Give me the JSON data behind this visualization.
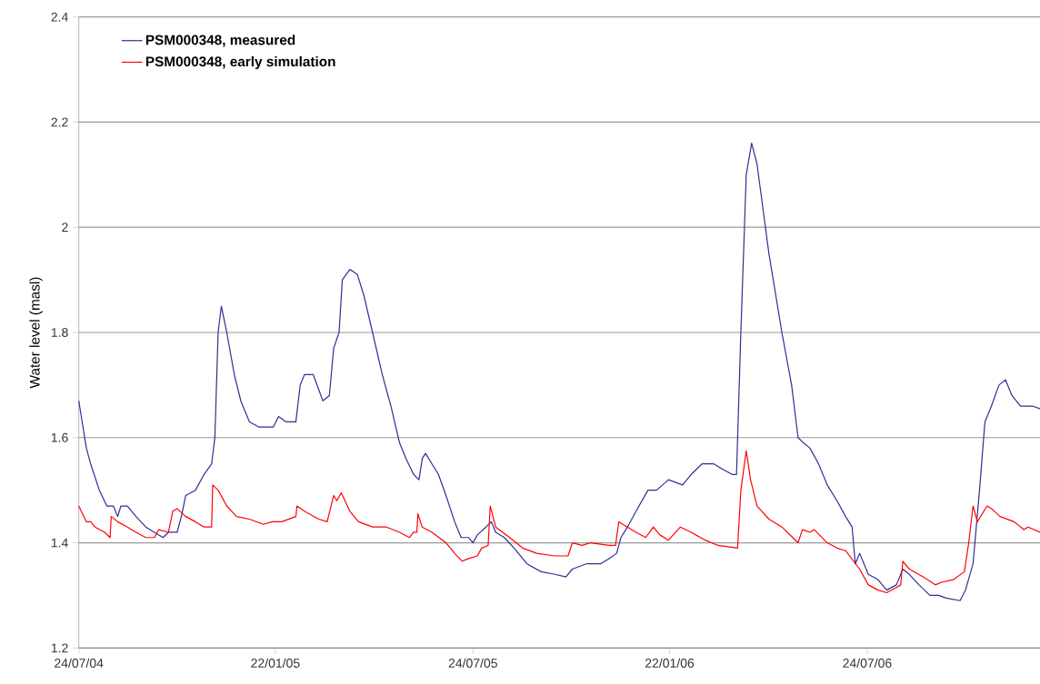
{
  "chart_data": {
    "type": "line",
    "ylabel": "Water level (masl)",
    "xlim": [
      "2004-07-24",
      "2006-12-31"
    ],
    "ylim": [
      1.2,
      2.4
    ],
    "yticks": [
      1.2,
      1.4,
      1.6,
      1.8,
      2,
      2.2,
      2.4
    ],
    "xticks": [
      {
        "value": "2004-07-24",
        "label": "24/07/04"
      },
      {
        "value": "2005-01-22",
        "label": "22/01/05"
      },
      {
        "value": "2005-07-24",
        "label": "24/07/05"
      },
      {
        "value": "2006-01-22",
        "label": "22/01/06"
      },
      {
        "value": "2006-07-24",
        "label": "24/07/06"
      }
    ],
    "grid": "y",
    "legend": "top left",
    "series": [
      {
        "name": "PSM000348, measured",
        "color": "#2e2e96",
        "x": [
          "2004-07-24",
          "2004-07-31",
          "2004-08-04",
          "2004-08-12",
          "2004-08-19",
          "2004-08-25",
          "2004-08-29",
          "2004-09-01",
          "2004-09-07",
          "2004-09-15",
          "2004-09-24",
          "2004-10-02",
          "2004-10-10",
          "2004-10-15",
          "2004-10-23",
          "2004-10-27",
          "2004-10-31",
          "2004-11-09",
          "2004-11-17",
          "2004-11-24",
          "2004-11-27",
          "2004-11-30",
          "2004-12-03",
          "2004-12-08",
          "2004-12-15",
          "2004-12-21",
          "2004-12-29",
          "2005-01-07",
          "2005-01-13",
          "2005-01-20",
          "2005-01-25",
          "2005-02-01",
          "2005-02-10",
          "2005-02-14",
          "2005-02-18",
          "2005-02-26",
          "2005-03-07",
          "2005-03-13",
          "2005-03-17",
          "2005-03-22",
          "2005-03-25",
          "2005-04-01",
          "2005-04-08",
          "2005-04-14",
          "2005-04-22",
          "2005-05-01",
          "2005-05-09",
          "2005-05-17",
          "2005-05-23",
          "2005-05-30",
          "2005-06-04",
          "2005-06-07",
          "2005-06-10",
          "2005-06-16",
          "2005-06-22",
          "2005-06-29",
          "2005-07-07",
          "2005-07-13",
          "2005-07-20",
          "2005-07-24",
          "2005-07-28",
          "2005-08-05",
          "2005-08-10",
          "2005-08-14",
          "2005-08-22",
          "2005-08-31",
          "2005-09-12",
          "2005-09-25",
          "2005-10-08",
          "2005-10-18",
          "2005-10-24",
          "2005-11-06",
          "2005-11-19",
          "2005-11-27",
          "2005-12-04",
          "2005-12-08",
          "2005-12-14",
          "2005-12-22",
          "2006-01-02",
          "2006-01-10",
          "2006-01-21",
          "2006-02-03",
          "2006-02-11",
          "2006-02-21",
          "2006-03-04",
          "2006-03-12",
          "2006-03-21",
          "2006-03-25",
          "2006-03-29",
          "2006-04-03",
          "2006-04-08",
          "2006-04-13",
          "2006-04-24",
          "2006-05-06",
          "2006-05-15",
          "2006-05-21",
          "2006-05-26",
          "2006-06-01",
          "2006-06-09",
          "2006-06-17",
          "2006-06-26",
          "2006-07-04",
          "2006-07-10",
          "2006-07-13",
          "2006-07-17",
          "2006-07-25",
          "2006-08-03",
          "2006-08-11",
          "2006-08-20",
          "2006-08-26",
          "2006-09-01",
          "2006-09-10",
          "2006-09-20",
          "2006-09-28",
          "2006-10-05",
          "2006-10-18",
          "2006-10-23",
          "2006-10-30",
          "2006-11-05",
          "2006-11-10",
          "2006-11-16",
          "2006-11-23",
          "2006-11-29",
          "2006-12-05",
          "2006-12-13",
          "2006-12-24",
          "2006-12-31"
        ],
        "values": [
          1.67,
          1.58,
          1.55,
          1.5,
          1.47,
          1.47,
          1.45,
          1.47,
          1.47,
          1.45,
          1.43,
          1.42,
          1.41,
          1.42,
          1.42,
          1.45,
          1.49,
          1.5,
          1.53,
          1.55,
          1.6,
          1.8,
          1.85,
          1.8,
          1.72,
          1.67,
          1.63,
          1.62,
          1.62,
          1.62,
          1.64,
          1.63,
          1.63,
          1.7,
          1.72,
          1.72,
          1.67,
          1.68,
          1.77,
          1.8,
          1.9,
          1.92,
          1.91,
          1.87,
          1.8,
          1.72,
          1.66,
          1.59,
          1.56,
          1.53,
          1.52,
          1.56,
          1.57,
          1.55,
          1.53,
          1.49,
          1.44,
          1.41,
          1.41,
          1.4,
          1.415,
          1.43,
          1.44,
          1.42,
          1.41,
          1.39,
          1.36,
          1.345,
          1.34,
          1.335,
          1.35,
          1.36,
          1.36,
          1.37,
          1.38,
          1.41,
          1.43,
          1.46,
          1.5,
          1.5,
          1.52,
          1.51,
          1.53,
          1.55,
          1.55,
          1.54,
          1.53,
          1.53,
          1.8,
          2.1,
          2.16,
          2.12,
          1.95,
          1.8,
          1.7,
          1.6,
          1.59,
          1.58,
          1.55,
          1.51,
          1.48,
          1.45,
          1.43,
          1.36,
          1.38,
          1.34,
          1.33,
          1.31,
          1.32,
          1.35,
          1.34,
          1.32,
          1.3,
          1.3,
          1.295,
          1.29,
          1.31,
          1.36,
          1.5,
          1.63,
          1.66,
          1.7,
          1.71,
          1.68,
          1.66,
          1.66,
          1.655
        ]
      },
      {
        "name": "PSM000348, early simulation",
        "color": "#ff0000",
        "x": [
          "2004-07-24",
          "2004-07-31",
          "2004-08-04",
          "2004-08-08",
          "2004-08-17",
          "2004-08-22",
          "2004-08-23",
          "2004-08-29",
          "2004-09-07",
          "2004-09-15",
          "2004-09-24",
          "2004-10-02",
          "2004-10-06",
          "2004-10-15",
          "2004-10-19",
          "2004-10-23",
          "2004-10-31",
          "2004-11-09",
          "2004-11-17",
          "2004-11-24",
          "2004-11-25",
          "2004-11-30",
          "2004-12-08",
          "2004-12-17",
          "2004-12-29",
          "2005-01-11",
          "2005-01-19",
          "2005-01-28",
          "2005-02-10",
          "2005-02-11",
          "2005-02-18",
          "2005-03-03",
          "2005-03-11",
          "2005-03-17",
          "2005-03-20",
          "2005-03-24",
          "2005-04-01",
          "2005-04-09",
          "2005-04-22",
          "2005-05-05",
          "2005-05-17",
          "2005-05-26",
          "2005-05-30",
          "2005-06-02",
          "2005-06-03",
          "2005-06-07",
          "2005-06-16",
          "2005-06-29",
          "2005-07-07",
          "2005-07-14",
          "2005-07-20",
          "2005-07-28",
          "2005-08-01",
          "2005-08-07",
          "2005-08-09",
          "2005-08-14",
          "2005-08-27",
          "2005-09-08",
          "2005-09-21",
          "2005-10-08",
          "2005-10-20",
          "2005-10-24",
          "2005-11-02",
          "2005-11-10",
          "2005-11-27",
          "2005-12-03",
          "2005-12-06",
          "2005-12-14",
          "2005-12-22",
          "2005-12-31",
          "2006-01-07",
          "2006-01-13",
          "2006-01-21",
          "2006-02-01",
          "2006-02-11",
          "2006-02-24",
          "2006-03-08",
          "2006-03-26",
          "2006-03-29",
          "2006-04-03",
          "2006-04-07",
          "2006-04-13",
          "2006-04-24",
          "2006-05-06",
          "2006-05-16",
          "2006-05-21",
          "2006-05-25",
          "2006-06-01",
          "2006-06-05",
          "2006-06-17",
          "2006-06-26",
          "2006-07-04",
          "2006-07-17",
          "2006-07-25",
          "2006-08-03",
          "2006-08-11",
          "2006-08-20",
          "2006-08-24",
          "2006-08-26",
          "2006-09-01",
          "2006-09-14",
          "2006-09-25",
          "2006-10-01",
          "2006-10-12",
          "2006-10-22",
          "2006-10-26",
          "2006-10-30",
          "2006-11-03",
          "2006-11-12",
          "2006-11-16",
          "2006-11-24",
          "2006-12-07",
          "2006-12-16",
          "2006-12-20",
          "2006-12-31"
        ],
        "values": [
          1.47,
          1.44,
          1.44,
          1.43,
          1.42,
          1.41,
          1.45,
          1.44,
          1.43,
          1.42,
          1.41,
          1.41,
          1.425,
          1.42,
          1.46,
          1.465,
          1.45,
          1.44,
          1.43,
          1.43,
          1.51,
          1.5,
          1.47,
          1.45,
          1.445,
          1.435,
          1.44,
          1.44,
          1.45,
          1.47,
          1.46,
          1.445,
          1.44,
          1.49,
          1.48,
          1.495,
          1.46,
          1.44,
          1.43,
          1.43,
          1.42,
          1.41,
          1.42,
          1.42,
          1.455,
          1.43,
          1.42,
          1.4,
          1.38,
          1.365,
          1.37,
          1.375,
          1.39,
          1.395,
          1.47,
          1.43,
          1.41,
          1.39,
          1.38,
          1.375,
          1.375,
          1.4,
          1.395,
          1.4,
          1.395,
          1.395,
          1.44,
          1.43,
          1.42,
          1.41,
          1.43,
          1.415,
          1.405,
          1.43,
          1.42,
          1.405,
          1.395,
          1.39,
          1.5,
          1.575,
          1.52,
          1.47,
          1.445,
          1.43,
          1.41,
          1.4,
          1.425,
          1.42,
          1.425,
          1.4,
          1.39,
          1.385,
          1.35,
          1.32,
          1.31,
          1.305,
          1.315,
          1.32,
          1.365,
          1.35,
          1.335,
          1.32,
          1.325,
          1.33,
          1.345,
          1.4,
          1.47,
          1.44,
          1.47,
          1.465,
          1.45,
          1.44,
          1.425,
          1.43,
          1.42
        ]
      }
    ]
  }
}
